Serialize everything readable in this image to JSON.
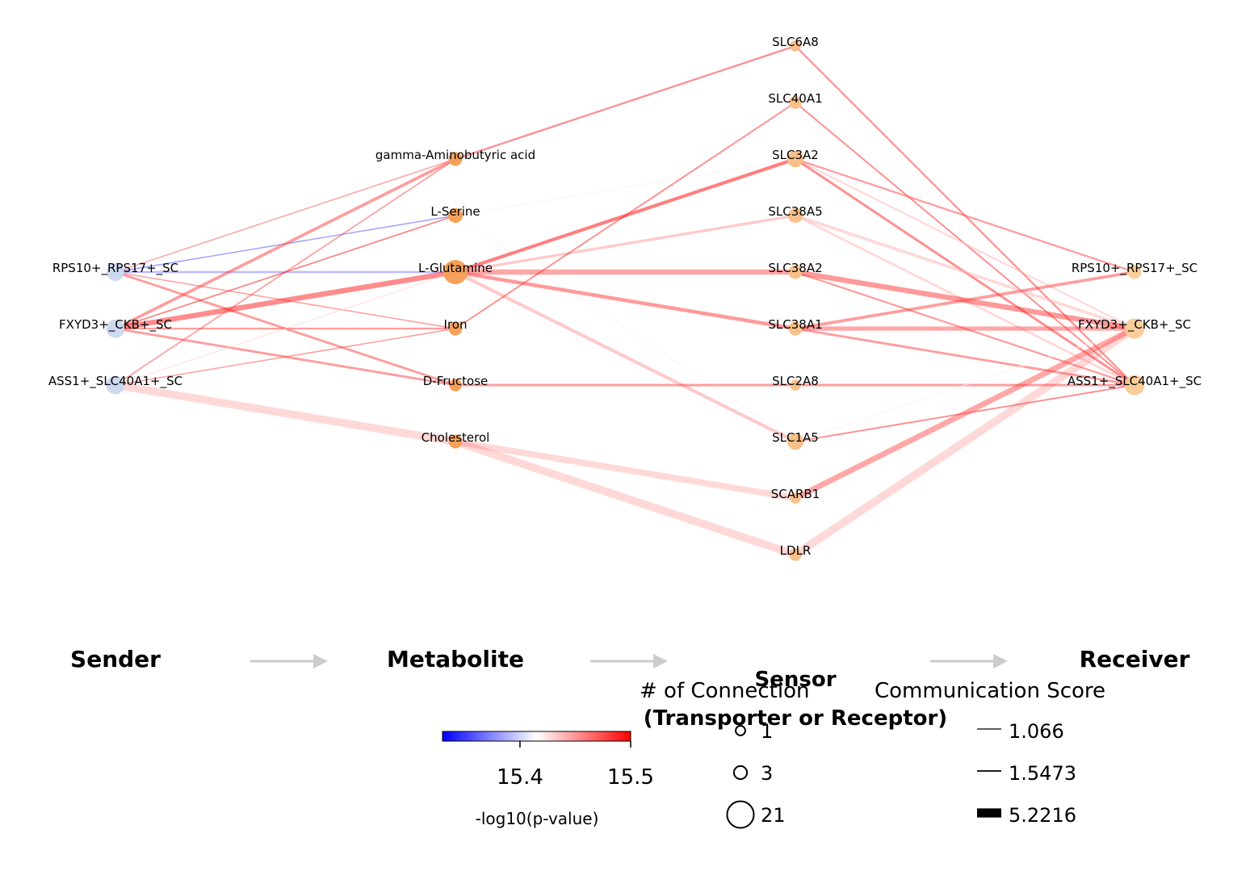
{
  "layers": {
    "sender": "Sender",
    "metabolite": "Metabolite",
    "sensor_line1": "Sensor",
    "sensor_line2": "(Transporter or Receptor)",
    "receiver": "Receiver"
  },
  "colors": {
    "sender_node": "#cdd9ee",
    "metabolite_node": "#f6a15a",
    "sensor_node": "#f9c08a",
    "receiver_node": "#fbcd9a",
    "arrow": "#cccccc",
    "cmap_low": "#0000ff",
    "cmap_mid": "#ffffff",
    "cmap_high": "#ff0000"
  },
  "nodes": {
    "senders": [
      {
        "id": "s_rps",
        "label": "RPS10+_RPS17+_SC",
        "connections": 8
      },
      {
        "id": "s_fxyd",
        "label": "FXYD3+_CKB+_SC",
        "connections": 9
      },
      {
        "id": "s_ass",
        "label": "ASS1+_SLC40A1+_SC",
        "connections": 9
      }
    ],
    "metabolites": [
      {
        "id": "m_gaba",
        "label": "gamma-Aminobutyric acid",
        "connections": 3
      },
      {
        "id": "m_ser",
        "label": "L-Serine",
        "connections": 4
      },
      {
        "id": "m_gln",
        "label": "L-Glutamine",
        "connections": 21
      },
      {
        "id": "m_iron",
        "label": "Iron",
        "connections": 3
      },
      {
        "id": "m_fru",
        "label": "D-Fructose",
        "connections": 2
      },
      {
        "id": "m_chol",
        "label": "Cholesterol",
        "connections": 3
      }
    ],
    "sensors": [
      {
        "id": "r_slc6a8",
        "label": "SLC6A8",
        "connections": 1
      },
      {
        "id": "r_slc40a1",
        "label": "SLC40A1",
        "connections": 2
      },
      {
        "id": "r_slc3a2",
        "label": "SLC3A2",
        "connections": 6
      },
      {
        "id": "r_slc38a5",
        "label": "SLC38A5",
        "connections": 4
      },
      {
        "id": "r_slc38a2",
        "label": "SLC38A2",
        "connections": 3
      },
      {
        "id": "r_slc38a1",
        "label": "SLC38A1",
        "connections": 3
      },
      {
        "id": "r_slc2a8",
        "label": "SLC2A8",
        "connections": 1
      },
      {
        "id": "r_slc1a5",
        "label": "SLC1A5",
        "connections": 6
      },
      {
        "id": "r_scarb1",
        "label": "SCARB1",
        "connections": 1
      },
      {
        "id": "r_ldlr",
        "label": "LDLR",
        "connections": 2
      }
    ],
    "receivers": [
      {
        "id": "v_rps",
        "label": "RPS10+_RPS17+_SC",
        "connections": 3
      },
      {
        "id": "v_fxyd",
        "label": "FXYD3+_CKB+_SC",
        "connections": 12
      },
      {
        "id": "v_ass",
        "label": "ASS1+_SLC40A1+_SC",
        "connections": 12
      }
    ]
  },
  "edges": [
    {
      "from": "s_rps",
      "to": "m_gaba",
      "pval": 15.48,
      "score": 1.07
    },
    {
      "from": "s_rps",
      "to": "m_ser",
      "pval": 15.35,
      "score": 1.07
    },
    {
      "from": "s_rps",
      "to": "m_gln",
      "pval": 15.37,
      "score": 1.6
    },
    {
      "from": "s_rps",
      "to": "m_fru",
      "pval": 15.48,
      "score": 1.8
    },
    {
      "from": "s_rps",
      "to": "m_iron",
      "pval": 15.48,
      "score": 1.1
    },
    {
      "from": "s_fxyd",
      "to": "m_gaba",
      "pval": 15.48,
      "score": 2.2
    },
    {
      "from": "s_fxyd",
      "to": "m_gln",
      "pval": 15.5,
      "score": 3.6
    },
    {
      "from": "s_fxyd",
      "to": "m_ser",
      "pval": 15.5,
      "score": 1.2
    },
    {
      "from": "s_fxyd",
      "to": "m_iron",
      "pval": 15.48,
      "score": 1.5
    },
    {
      "from": "s_fxyd",
      "to": "m_fru",
      "pval": 15.48,
      "score": 1.8
    },
    {
      "from": "s_ass",
      "to": "m_gaba",
      "pval": 15.48,
      "score": 1.2
    },
    {
      "from": "s_ass",
      "to": "m_gln",
      "pval": 15.43,
      "score": 1.2
    },
    {
      "from": "s_ass",
      "to": "m_iron",
      "pval": 15.48,
      "score": 1.1
    },
    {
      "from": "s_ass",
      "to": "m_chol",
      "pval": 15.48,
      "score": 5.2216
    },
    {
      "from": "m_gaba",
      "to": "r_slc6a8",
      "pval": 15.49,
      "score": 1.5
    },
    {
      "from": "m_ser",
      "to": "r_slc3a2",
      "pval": 15.42,
      "score": 1.2
    },
    {
      "from": "m_ser",
      "to": "r_slc1a5",
      "pval": 15.42,
      "score": 1.2
    },
    {
      "from": "m_gln",
      "to": "r_slc3a2",
      "pval": 15.5,
      "score": 2.4
    },
    {
      "from": "m_gln",
      "to": "r_slc38a5",
      "pval": 15.45,
      "score": 2.0
    },
    {
      "from": "m_gln",
      "to": "r_slc38a2",
      "pval": 15.48,
      "score": 3.6
    },
    {
      "from": "m_gln",
      "to": "r_slc38a1",
      "pval": 15.49,
      "score": 2.6
    },
    {
      "from": "m_gln",
      "to": "r_slc1a5",
      "pval": 15.45,
      "score": 2.4
    },
    {
      "from": "m_iron",
      "to": "r_slc40a1",
      "pval": 15.49,
      "score": 1.3
    },
    {
      "from": "m_fru",
      "to": "r_slc2a8",
      "pval": 15.48,
      "score": 1.8
    },
    {
      "from": "m_chol",
      "to": "r_scarb1",
      "pval": 15.48,
      "score": 4.3
    },
    {
      "from": "m_chol",
      "to": "r_ldlr",
      "pval": 15.48,
      "score": 5.2216
    },
    {
      "from": "r_slc6a8",
      "to": "v_ass",
      "pval": 15.49,
      "score": 1.4
    },
    {
      "from": "r_slc40a1",
      "to": "v_ass",
      "pval": 15.49,
      "score": 1.3
    },
    {
      "from": "r_slc3a2",
      "to": "v_rps",
      "pval": 15.48,
      "score": 1.5
    },
    {
      "from": "r_slc3a2",
      "to": "v_fxyd",
      "pval": 15.44,
      "score": 1.5
    },
    {
      "from": "r_slc3a2",
      "to": "v_ass",
      "pval": 15.49,
      "score": 1.8
    },
    {
      "from": "r_slc38a5",
      "to": "v_fxyd",
      "pval": 15.44,
      "score": 2.2
    },
    {
      "from": "r_slc38a5",
      "to": "v_ass",
      "pval": 15.44,
      "score": 1.8
    },
    {
      "from": "r_slc38a2",
      "to": "v_fxyd",
      "pval": 15.49,
      "score": 3.6
    },
    {
      "from": "r_slc38a2",
      "to": "v_ass",
      "pval": 15.48,
      "score": 1.5
    },
    {
      "from": "r_slc38a1",
      "to": "v_rps",
      "pval": 15.48,
      "score": 2.2
    },
    {
      "from": "r_slc38a1",
      "to": "v_fxyd",
      "pval": 15.48,
      "score": 3.0
    },
    {
      "from": "r_slc38a1",
      "to": "v_ass",
      "pval": 15.48,
      "score": 1.8
    },
    {
      "from": "r_slc2a8",
      "to": "v_ass",
      "pval": 15.48,
      "score": 1.8
    },
    {
      "from": "r_slc1a5",
      "to": "v_fxyd",
      "pval": 15.42,
      "score": 1.5
    },
    {
      "from": "r_slc1a5",
      "to": "v_ass",
      "pval": 15.49,
      "score": 1.3
    },
    {
      "from": "r_scarb1",
      "to": "v_fxyd",
      "pval": 15.48,
      "score": 3.8
    },
    {
      "from": "r_ldlr",
      "to": "v_fxyd",
      "pval": 15.48,
      "score": 5.2216
    }
  ],
  "legend": {
    "colorbar": {
      "title": "-log10(p-value)",
      "min": 15.33,
      "max": 15.5,
      "ticks": [
        {
          "value": 15.4,
          "label": "15.4"
        },
        {
          "value": 15.5,
          "label": "15.5"
        }
      ]
    },
    "connections": {
      "title": "# of Connection",
      "entries": [
        {
          "value": 1,
          "label": "1"
        },
        {
          "value": 3,
          "label": "3"
        },
        {
          "value": 21,
          "label": "21"
        }
      ]
    },
    "score": {
      "title": "Communication Score",
      "entries": [
        {
          "value": 1.066,
          "label": "1.066"
        },
        {
          "value": 1.5473,
          "label": "1.5473"
        },
        {
          "value": 5.2216,
          "label": "5.2216"
        }
      ]
    }
  }
}
